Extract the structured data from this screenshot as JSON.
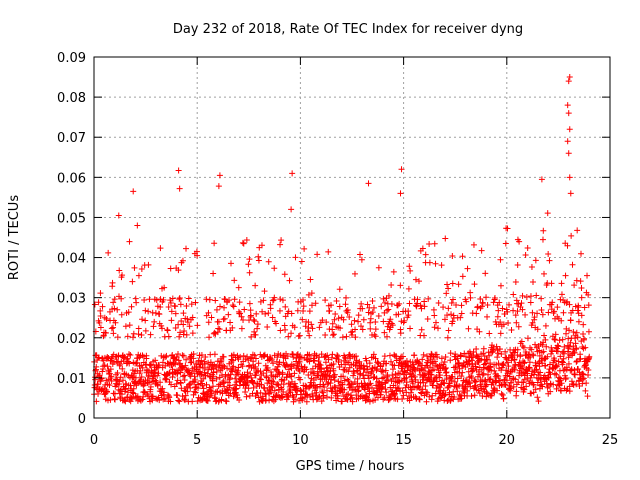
{
  "chart_data": {
    "type": "scatter",
    "title": "Day 232 of 2018, Rate Of TEC Index for receiver dyng",
    "xlabel": "GPS time / hours",
    "ylabel": "ROTI / TECUs",
    "xlim": [
      0,
      25
    ],
    "ylim": [
      0,
      0.09
    ],
    "xticks": [
      0,
      5,
      10,
      15,
      20,
      25
    ],
    "xtick_labels": [
      "0",
      "5",
      "10",
      "15",
      "20",
      "25"
    ],
    "yticks": [
      0,
      0.01,
      0.02,
      0.03,
      0.04,
      0.05,
      0.06,
      0.07,
      0.08,
      0.09
    ],
    "ytick_labels": [
      "0",
      "0.01",
      "0.02",
      "0.03",
      "0.04",
      "0.05",
      "0.06",
      "0.07",
      "0.08",
      "0.09"
    ],
    "grid": true,
    "marker": "+",
    "series": [
      {
        "name": "ROTI",
        "color": "#ff0000",
        "x_range": [
          0,
          24
        ],
        "typical_range": [
          0.004,
          0.02
        ],
        "notable_points": [
          {
            "x": 1.2,
            "y": 0.0505
          },
          {
            "x": 1.9,
            "y": 0.0565
          },
          {
            "x": 2.1,
            "y": 0.048
          },
          {
            "x": 4.1,
            "y": 0.0617
          },
          {
            "x": 4.15,
            "y": 0.0572
          },
          {
            "x": 6.1,
            "y": 0.0605
          },
          {
            "x": 6.05,
            "y": 0.0578
          },
          {
            "x": 9.6,
            "y": 0.061
          },
          {
            "x": 9.55,
            "y": 0.052
          },
          {
            "x": 13.3,
            "y": 0.0585
          },
          {
            "x": 14.9,
            "y": 0.062
          },
          {
            "x": 14.85,
            "y": 0.056
          },
          {
            "x": 21.7,
            "y": 0.0595
          },
          {
            "x": 23.05,
            "y": 0.085
          },
          {
            "x": 23.0,
            "y": 0.084
          },
          {
            "x": 22.95,
            "y": 0.078
          },
          {
            "x": 23.0,
            "y": 0.076
          },
          {
            "x": 23.05,
            "y": 0.072
          },
          {
            "x": 22.95,
            "y": 0.069
          },
          {
            "x": 23.0,
            "y": 0.066
          },
          {
            "x": 23.05,
            "y": 0.06
          },
          {
            "x": 23.1,
            "y": 0.056
          }
        ]
      }
    ]
  }
}
